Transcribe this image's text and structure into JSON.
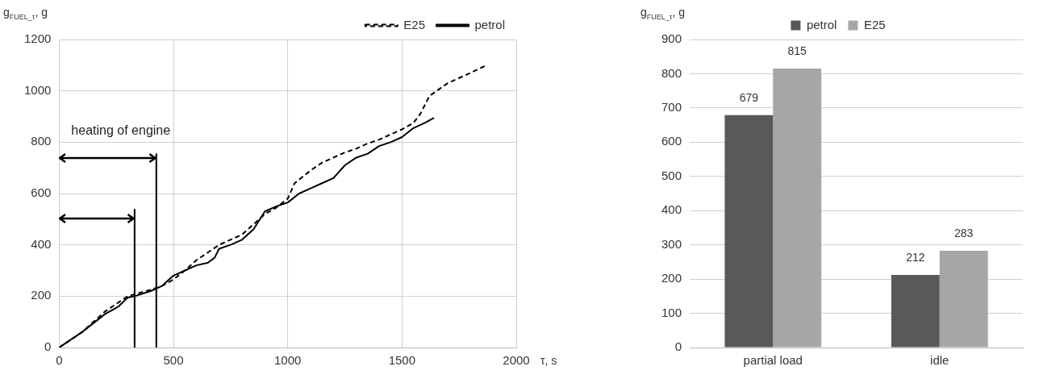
{
  "chart_data": [
    {
      "type": "line",
      "ylabel": "g$_{FUEL_τ}$, g",
      "xlabel": "τ, s",
      "xlim": [
        0,
        2000
      ],
      "xticks": [
        0,
        500,
        1000,
        1500,
        2000
      ],
      "ylim": [
        0,
        1200
      ],
      "yticks": [
        0,
        200,
        400,
        600,
        800,
        1000,
        1200
      ],
      "grid": true,
      "legend": "top right",
      "marker": "none",
      "series": [
        {
          "name": "E25",
          "color": "#000000",
          "line_style": "dashed",
          "x": [
            0,
            100,
            200,
            300,
            400,
            450,
            500,
            550,
            600,
            650,
            700,
            800,
            850,
            900,
            950,
            1000,
            1030,
            1100,
            1150,
            1200,
            1250,
            1300,
            1350,
            1400,
            1450,
            1500,
            1550,
            1580,
            1620,
            1700,
            1800,
            1870
          ],
          "values": [
            0,
            60,
            140,
            200,
            225,
            240,
            265,
            300,
            340,
            370,
            400,
            440,
            480,
            520,
            545,
            580,
            640,
            690,
            720,
            740,
            760,
            775,
            795,
            810,
            830,
            850,
            875,
            910,
            980,
            1030,
            1070,
            1100
          ]
        },
        {
          "name": "petrol",
          "color": "#000000",
          "line_style": "solid",
          "x": [
            0,
            100,
            200,
            260,
            300,
            330,
            400,
            450,
            500,
            550,
            600,
            650,
            680,
            700,
            750,
            800,
            850,
            900,
            950,
            1000,
            1050,
            1100,
            1150,
            1200,
            1250,
            1300,
            1350,
            1400,
            1450,
            1500,
            1550,
            1600,
            1640
          ],
          "values": [
            0,
            60,
            130,
            160,
            195,
            200,
            220,
            240,
            280,
            300,
            320,
            330,
            350,
            385,
            400,
            420,
            460,
            530,
            550,
            565,
            600,
            620,
            640,
            660,
            710,
            740,
            755,
            785,
            800,
            820,
            855,
            875,
            895
          ]
        }
      ],
      "ref_lines": [
        {
          "axis": "x",
          "value": 330,
          "color": "#000000"
        },
        {
          "axis": "x",
          "value": 425,
          "color": "#000000"
        }
      ],
      "annotations": [
        "heating of engine"
      ]
    },
    {
      "type": "bar",
      "ylabel": "g$_{FUEL_τ}$, g",
      "categories": [
        "partial load",
        "idle"
      ],
      "ylim": [
        0,
        900
      ],
      "yticks": [
        0,
        100,
        200,
        300,
        400,
        500,
        600,
        700,
        800,
        900
      ],
      "grid": "y",
      "legend": "top",
      "data_labels": true,
      "series": [
        {
          "name": "petrol",
          "color": "#595959",
          "values": [
            679,
            212
          ]
        },
        {
          "name": "E25",
          "color": "#a6a6a6",
          "values": [
            815,
            283
          ]
        }
      ]
    }
  ]
}
